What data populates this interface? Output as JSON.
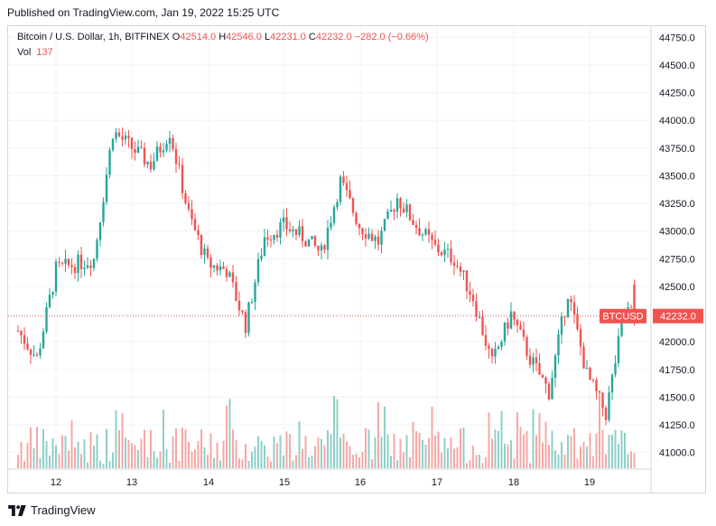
{
  "header": {
    "published": "Published on TradingView.com, Jan 19, 2022 15:25 UTC"
  },
  "legend": {
    "symbol": "Bitcoin / U.S. Dollar, 1h, BITFINEX",
    "o_label": "O",
    "o": "42514.0",
    "h_label": "H",
    "h": "42546.0",
    "l_label": "L",
    "l": "42231.0",
    "c_label": "C",
    "c": "42232.0",
    "change": "−282.0 (−0.66%)",
    "vol_label": "Vol",
    "vol_value": "137"
  },
  "footer": {
    "brand": "TradingView"
  },
  "colors": {
    "up": "#26a69a",
    "down": "#ef5350",
    "up_volume": "#8fcfc8",
    "down_volume": "#f4a8a6",
    "grid": "#f0f3fa"
  },
  "chart_data": {
    "type": "candlestick",
    "symbol": "BTCUSD",
    "interval": "1h",
    "last_price": 42232.0,
    "last_price_label": "42232.0",
    "price_tag": "BTCUSD",
    "ylim": [
      40850,
      44850
    ],
    "y_ticks": [
      41000,
      41250,
      41500,
      41750,
      42000,
      42250,
      42500,
      42750,
      43000,
      43250,
      43500,
      43750,
      44000,
      44250,
      44500,
      44750
    ],
    "y_tick_labels": [
      "41000.0",
      "41250.0",
      "41500.0",
      "41750.0",
      "42000.0",
      "42250.0",
      "42500.0",
      "42750.0",
      "43000.0",
      "43250.0",
      "43500.0",
      "43750.0",
      "44000.0",
      "44250.0",
      "44500.0",
      "44750.0"
    ],
    "x_ticks": [
      "12",
      "13",
      "14",
      "15",
      "16",
      "17",
      "18",
      "19"
    ],
    "grid": true,
    "day_anchors": [
      {
        "day": "11 12:00",
        "close": 42100
      },
      {
        "day": "11 18:00",
        "close": 41850
      },
      {
        "day": "12 00:00",
        "close": 42650
      },
      {
        "day": "12 06:00",
        "close": 42700
      },
      {
        "day": "12 12:00",
        "close": 42750
      },
      {
        "day": "12 18:00",
        "close": 43900
      },
      {
        "day": "13 00:00",
        "close": 43750
      },
      {
        "day": "13 06:00",
        "close": 43600
      },
      {
        "day": "13 12:00",
        "close": 43900
      },
      {
        "day": "13 18:00",
        "close": 43150
      },
      {
        "day": "14 00:00",
        "close": 42700
      },
      {
        "day": "14 06:00",
        "close": 42650
      },
      {
        "day": "14 12:00",
        "close": 42150
      },
      {
        "day": "14 18:00",
        "close": 42950
      },
      {
        "day": "15 00:00",
        "close": 43050
      },
      {
        "day": "15 06:00",
        "close": 42950
      },
      {
        "day": "15 12:00",
        "close": 42800
      },
      {
        "day": "15 18:00",
        "close": 43450
      },
      {
        "day": "16 00:00",
        "close": 43050
      },
      {
        "day": "16 06:00",
        "close": 42900
      },
      {
        "day": "16 12:00",
        "close": 43300
      },
      {
        "day": "16 18:00",
        "close": 43050
      },
      {
        "day": "17 00:00",
        "close": 42850
      },
      {
        "day": "17 06:00",
        "close": 42750
      },
      {
        "day": "17 12:00",
        "close": 42400
      },
      {
        "day": "17 18:00",
        "close": 41800
      },
      {
        "day": "18 00:00",
        "close": 42250
      },
      {
        "day": "18 06:00",
        "close": 41850
      },
      {
        "day": "18 12:00",
        "close": 41550
      },
      {
        "day": "18 18:00",
        "close": 42450
      },
      {
        "day": "19 00:00",
        "close": 41700
      },
      {
        "day": "19 06:00",
        "close": 41350
      },
      {
        "day": "19 12:00",
        "close": 42300
      },
      {
        "day": "19 15:00",
        "close": 42232
      }
    ]
  }
}
